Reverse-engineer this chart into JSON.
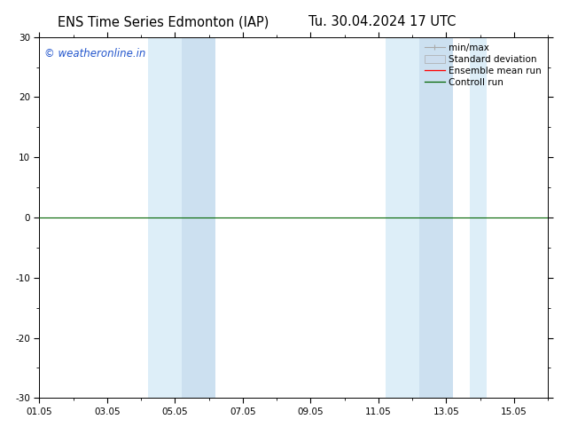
{
  "title_left": "ENS Time Series Edmonton (IAP)",
  "title_right": "Tu. 30.04.2024 17 UTC",
  "watermark": "© weatheronline.in",
  "ylim": [
    -30,
    30
  ],
  "yticks": [
    -30,
    -20,
    -10,
    0,
    10,
    20,
    30
  ],
  "xlim": [
    0,
    15
  ],
  "xtick_labels": [
    "01.05",
    "03.05",
    "05.05",
    "07.05",
    "09.05",
    "11.05",
    "13.05",
    "15.05"
  ],
  "xtick_positions_days": [
    0,
    2,
    4,
    6,
    8,
    10,
    12,
    14
  ],
  "shaded_bands": [
    {
      "start_day": 3.2,
      "end_day": 4.2,
      "color": "#ddeef8"
    },
    {
      "start_day": 4.2,
      "end_day": 5.2,
      "color": "#cce0f0"
    },
    {
      "start_day": 10.2,
      "end_day": 11.2,
      "color": "#ddeef8"
    },
    {
      "start_day": 11.2,
      "end_day": 12.2,
      "color": "#cce0f0"
    },
    {
      "start_day": 12.7,
      "end_day": 13.2,
      "color": "#ddeef8"
    }
  ],
  "hline_y": 0,
  "hline_color": "#006400",
  "legend_labels": [
    "min/max",
    "Standard deviation",
    "Ensemble mean run",
    "Controll run"
  ],
  "legend_colors": [
    "#aaaaaa",
    "#ccddee",
    "#ff0000",
    "#006400"
  ],
  "background_color": "#ffffff",
  "plot_bg_color": "#ffffff",
  "title_fontsize": 10.5,
  "watermark_color": "#2255cc",
  "watermark_fontsize": 8.5,
  "tick_fontsize": 7.5,
  "legend_fontsize": 7.5
}
